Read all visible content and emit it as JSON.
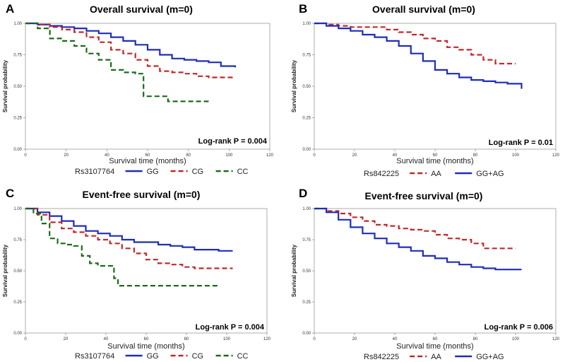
{
  "chart_data": [
    {
      "type": "line",
      "panel": "A",
      "title": "Overall survival (m=0)",
      "xlabel": "Survival time (months)",
      "ylabel": "Survival probability",
      "xticks": [
        "0",
        "20",
        "40",
        "60",
        "80",
        "100",
        "120"
      ],
      "yticks": [
        "0.00",
        "0.25",
        "0.50",
        "0.75",
        "1.00"
      ],
      "xlim": [
        0,
        120
      ],
      "ylim": [
        0,
        1
      ],
      "annotation": "Log-rank P = 0.004",
      "legend_title": "Rs3107764",
      "series": [
        {
          "name": "GG",
          "color": "#1f2db8",
          "dashed": false,
          "x": [
            0,
            6,
            12,
            18,
            24,
            30,
            36,
            42,
            48,
            54,
            60,
            66,
            72,
            78,
            84,
            90,
            96,
            103
          ],
          "y": [
            1.0,
            0.99,
            0.98,
            0.97,
            0.96,
            0.94,
            0.92,
            0.89,
            0.86,
            0.83,
            0.79,
            0.75,
            0.72,
            0.71,
            0.7,
            0.69,
            0.66,
            0.65
          ]
        },
        {
          "name": "CG",
          "color": "#c0282d",
          "dashed": true,
          "x": [
            0,
            6,
            12,
            18,
            24,
            30,
            36,
            42,
            48,
            54,
            60,
            66,
            72,
            78,
            84,
            90,
            96,
            103
          ],
          "y": [
            1.0,
            0.99,
            0.97,
            0.95,
            0.93,
            0.89,
            0.85,
            0.79,
            0.76,
            0.71,
            0.66,
            0.62,
            0.61,
            0.6,
            0.58,
            0.57,
            0.57,
            0.57
          ]
        },
        {
          "name": "CC",
          "color": "#1a6b1a",
          "dashed": true,
          "x": [
            0,
            6,
            12,
            18,
            24,
            30,
            36,
            42,
            48,
            54,
            58,
            62,
            66,
            70,
            80,
            90
          ],
          "y": [
            1.0,
            0.96,
            0.88,
            0.86,
            0.82,
            0.76,
            0.71,
            0.63,
            0.61,
            0.6,
            0.42,
            0.42,
            0.42,
            0.38,
            0.38,
            0.38
          ]
        }
      ]
    },
    {
      "type": "line",
      "panel": "B",
      "title": "Overall survival (m=0)",
      "xlabel": "Survival time (months)",
      "ylabel": "Survival probability",
      "xticks": [
        "0",
        "20",
        "40",
        "60",
        "80",
        "100",
        "120"
      ],
      "yticks": [
        "0.00",
        "0.25",
        "0.50",
        "0.75",
        "1.00"
      ],
      "xlim": [
        0,
        120
      ],
      "ylim": [
        0,
        1
      ],
      "annotation": "Log-rank P = 0.01",
      "legend_title": "Rs842225",
      "series": [
        {
          "name": "AA",
          "color": "#c0282d",
          "dashed": true,
          "x": [
            0,
            6,
            12,
            18,
            24,
            30,
            36,
            42,
            48,
            54,
            60,
            66,
            72,
            78,
            84,
            90,
            96,
            100
          ],
          "y": [
            1.0,
            0.99,
            0.98,
            0.97,
            0.97,
            0.97,
            0.95,
            0.93,
            0.91,
            0.88,
            0.86,
            0.81,
            0.79,
            0.75,
            0.71,
            0.68,
            0.68,
            0.68
          ]
        },
        {
          "name": "GG+AG",
          "color": "#1f2db8",
          "dashed": false,
          "x": [
            0,
            6,
            12,
            18,
            24,
            30,
            36,
            42,
            48,
            54,
            60,
            66,
            72,
            78,
            84,
            90,
            96,
            103
          ],
          "y": [
            1.0,
            0.98,
            0.96,
            0.94,
            0.91,
            0.89,
            0.86,
            0.82,
            0.76,
            0.7,
            0.63,
            0.6,
            0.57,
            0.55,
            0.54,
            0.53,
            0.52,
            0.48
          ]
        }
      ]
    },
    {
      "type": "line",
      "panel": "C",
      "title": "Event-free survival (m=0)",
      "xlabel": "Survival time (months)",
      "ylabel": "Survival probability",
      "xticks": [
        "0",
        "20",
        "40",
        "60",
        "80",
        "100",
        "120"
      ],
      "yticks": [
        "0.00",
        "0.25",
        "0.50",
        "0.75",
        "1.00"
      ],
      "xlim": [
        0,
        120
      ],
      "ylim": [
        0,
        1
      ],
      "annotation": "Log-rank P = 0.004",
      "legend_title": "Rs3107764",
      "series": [
        {
          "name": "GG",
          "color": "#1f2db8",
          "dashed": false,
          "x": [
            0,
            6,
            12,
            18,
            24,
            30,
            36,
            42,
            48,
            54,
            60,
            66,
            72,
            78,
            84,
            90,
            96,
            103
          ],
          "y": [
            1.0,
            0.97,
            0.94,
            0.9,
            0.86,
            0.82,
            0.8,
            0.78,
            0.75,
            0.73,
            0.73,
            0.71,
            0.7,
            0.69,
            0.67,
            0.67,
            0.66,
            0.66
          ]
        },
        {
          "name": "CG",
          "color": "#c0282d",
          "dashed": true,
          "x": [
            0,
            6,
            12,
            18,
            24,
            30,
            36,
            42,
            48,
            54,
            60,
            66,
            72,
            78,
            84,
            90,
            96,
            103
          ],
          "y": [
            1.0,
            0.95,
            0.89,
            0.84,
            0.81,
            0.78,
            0.75,
            0.72,
            0.68,
            0.64,
            0.59,
            0.56,
            0.55,
            0.53,
            0.52,
            0.52,
            0.52,
            0.52
          ]
        },
        {
          "name": "CC",
          "color": "#1a6b1a",
          "dashed": true,
          "x": [
            0,
            4,
            8,
            12,
            16,
            20,
            24,
            28,
            32,
            36,
            40,
            44,
            46,
            50,
            60,
            70,
            80,
            90,
            96
          ],
          "y": [
            1.0,
            0.96,
            0.88,
            0.76,
            0.72,
            0.71,
            0.7,
            0.62,
            0.56,
            0.54,
            0.54,
            0.44,
            0.38,
            0.38,
            0.38,
            0.38,
            0.38,
            0.38,
            0.38
          ]
        }
      ]
    },
    {
      "type": "line",
      "panel": "D",
      "title": "Event-free survival (m=0)",
      "xlabel": "Survival time (months)",
      "ylabel": "Survival probability",
      "xticks": [
        "0",
        "20",
        "40",
        "60",
        "80",
        "100",
        "120"
      ],
      "yticks": [
        "0.00",
        "0.25",
        "0.50",
        "0.75",
        "1.00"
      ],
      "xlim": [
        0,
        120
      ],
      "ylim": [
        0,
        1
      ],
      "annotation": "Log-rank P = 0.006",
      "legend_title": "Rs842225",
      "series": [
        {
          "name": "AA",
          "color": "#c0282d",
          "dashed": true,
          "x": [
            0,
            6,
            12,
            18,
            24,
            30,
            36,
            42,
            48,
            54,
            60,
            66,
            72,
            78,
            84,
            90,
            96,
            100
          ],
          "y": [
            1.0,
            0.98,
            0.96,
            0.93,
            0.9,
            0.87,
            0.86,
            0.84,
            0.83,
            0.82,
            0.79,
            0.76,
            0.75,
            0.72,
            0.68,
            0.68,
            0.68,
            0.68
          ]
        },
        {
          "name": "GG+AG",
          "color": "#1f2db8",
          "dashed": false,
          "x": [
            0,
            6,
            12,
            18,
            24,
            30,
            36,
            42,
            48,
            54,
            60,
            66,
            72,
            78,
            84,
            90,
            96,
            103
          ],
          "y": [
            1.0,
            0.97,
            0.91,
            0.85,
            0.8,
            0.76,
            0.72,
            0.69,
            0.66,
            0.62,
            0.6,
            0.57,
            0.55,
            0.53,
            0.52,
            0.51,
            0.51,
            0.51
          ]
        }
      ]
    }
  ]
}
